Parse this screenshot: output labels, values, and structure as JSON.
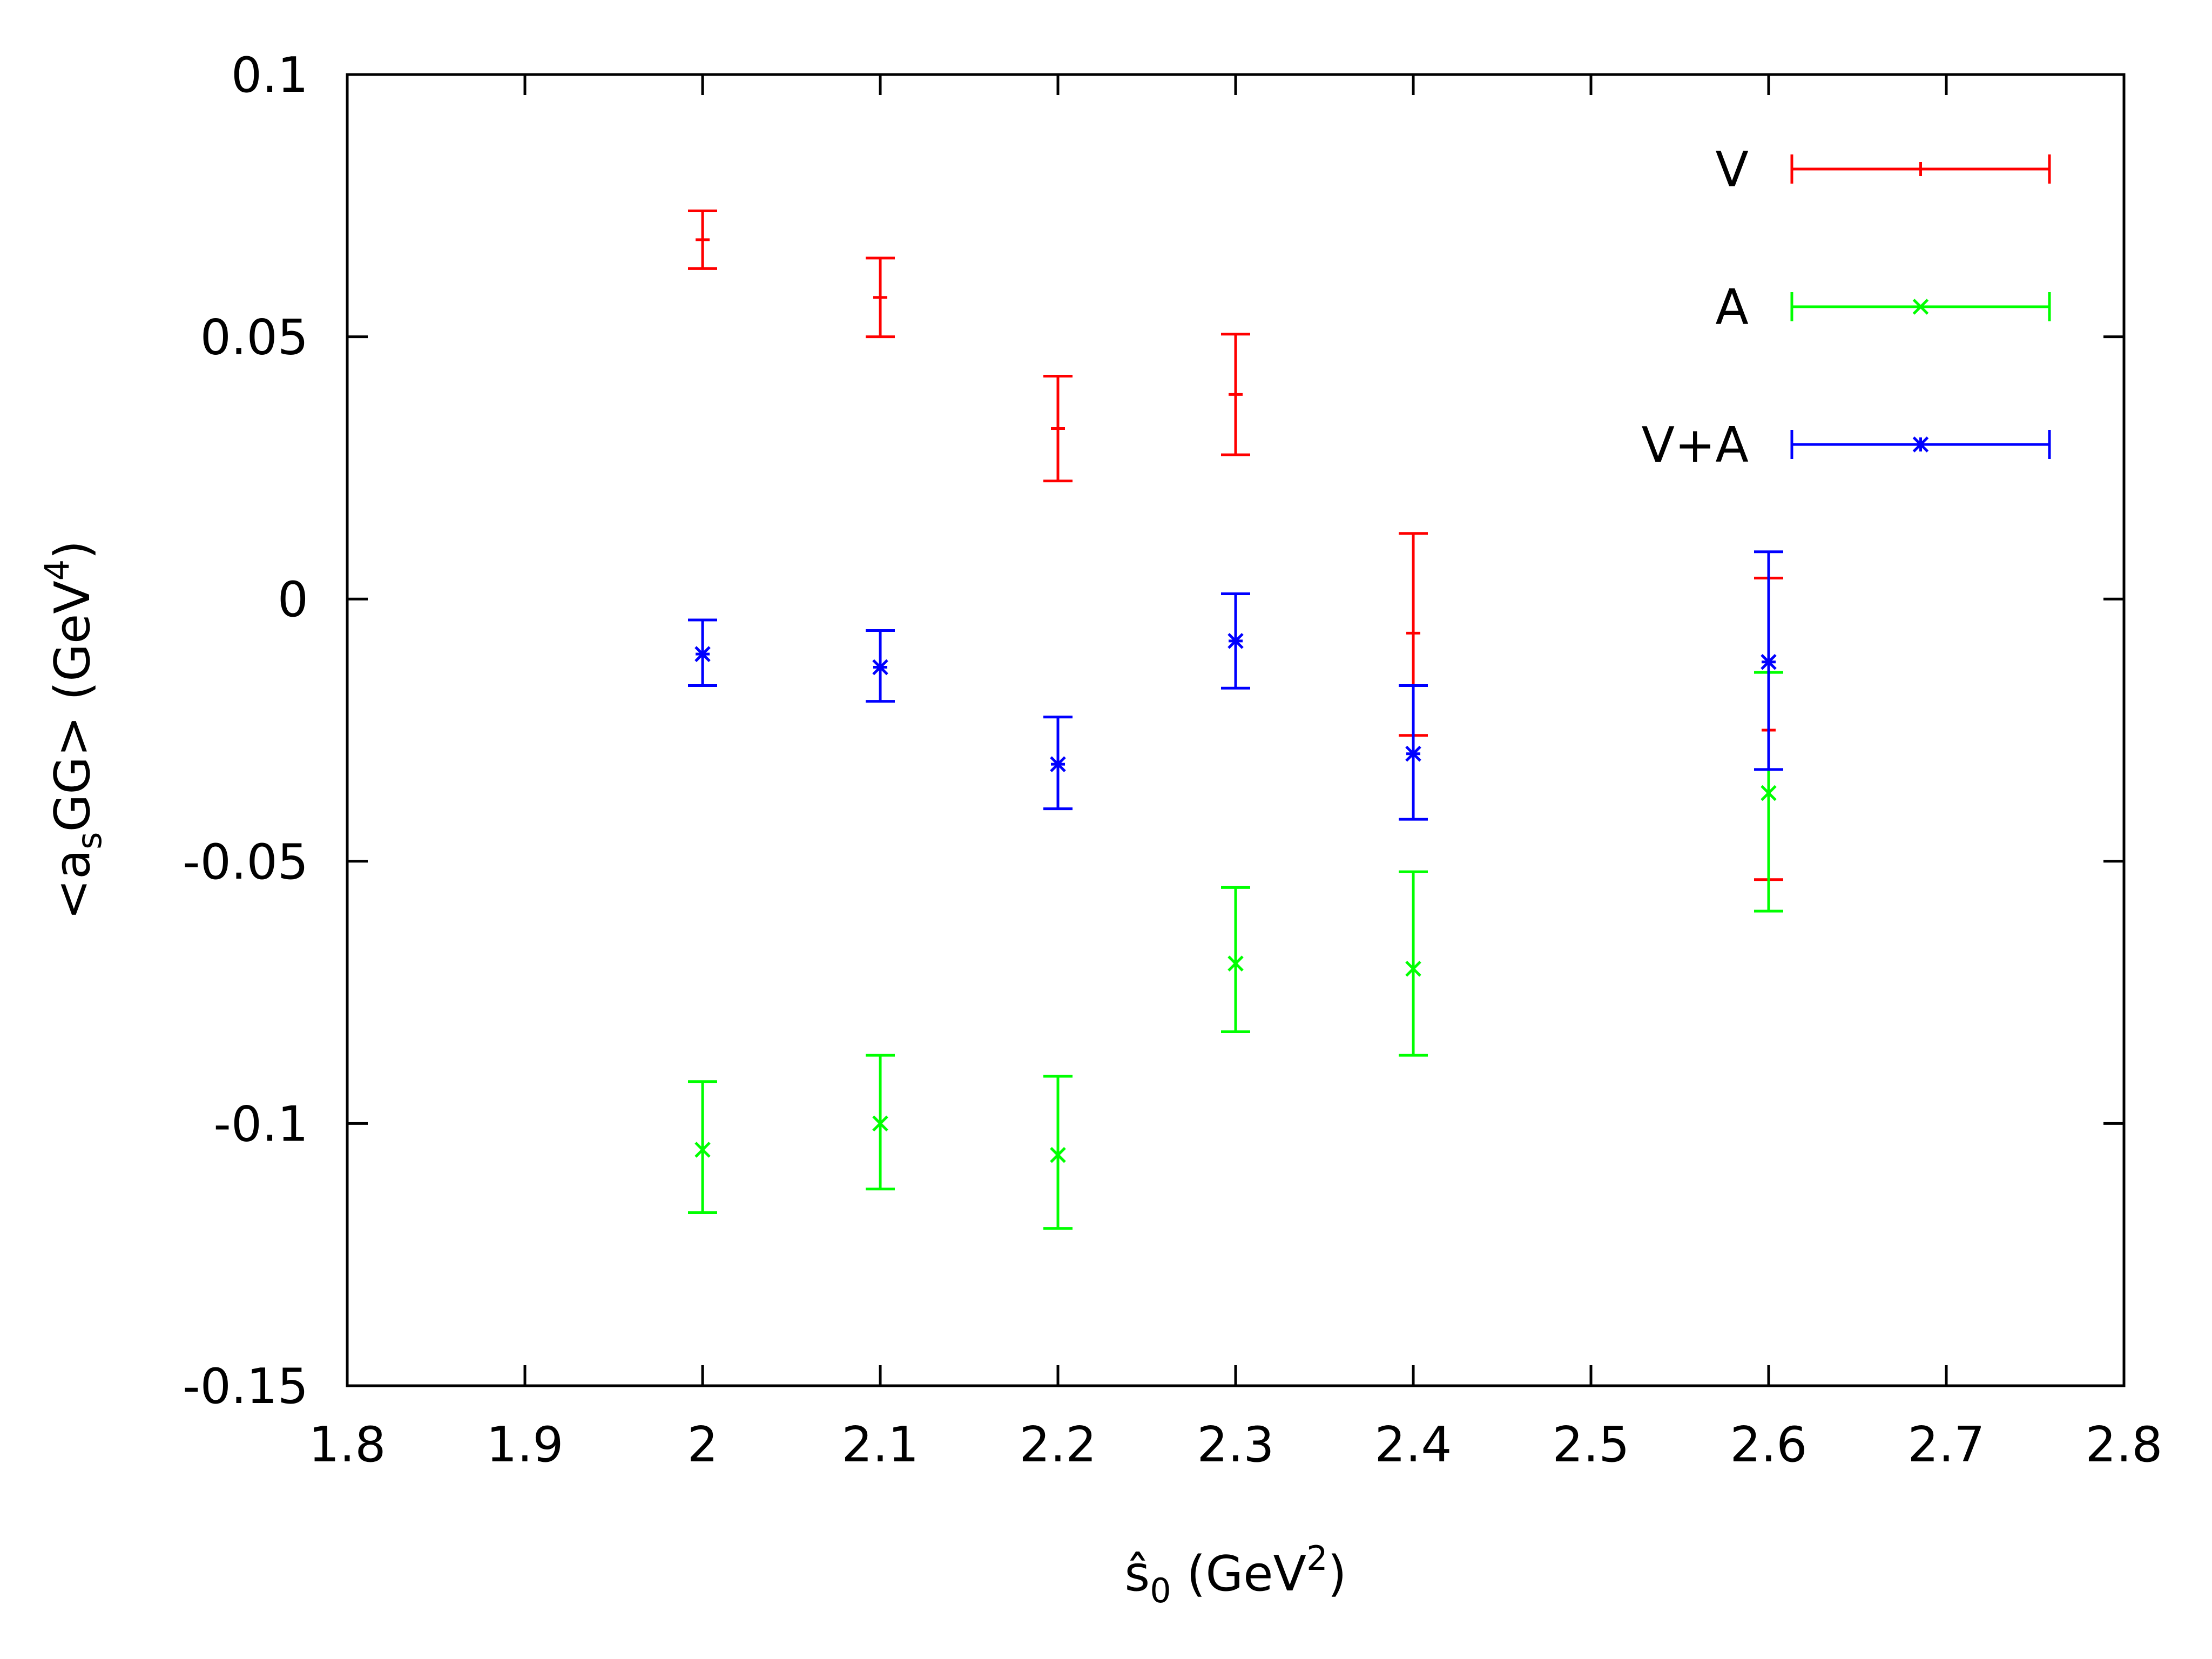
{
  "chart_data": {
    "type": "scatter",
    "subtype": "errorbar",
    "xlabel": {
      "base": "ŝ",
      "sub": "0",
      "text": " (GeV",
      "sup": "2",
      "close": ")"
    },
    "ylabel": {
      "pre": "<a",
      "sub": "s",
      "mid": "GG> (GeV",
      "sup": "4",
      "close": ")"
    },
    "xlim": [
      1.8,
      2.8
    ],
    "ylim": [
      -0.15,
      0.1
    ],
    "xticks": [
      1.8,
      1.9,
      2.0,
      2.1,
      2.2,
      2.3,
      2.4,
      2.5,
      2.6,
      2.7,
      2.8
    ],
    "xtick_labels": [
      "1.8",
      "1.9",
      "2",
      "2.1",
      "2.2",
      "2.3",
      "2.4",
      "2.5",
      "2.6",
      "2.7",
      "2.8"
    ],
    "yticks": [
      -0.15,
      -0.1,
      -0.05,
      0,
      0.05,
      0.1
    ],
    "ytick_labels": [
      "-0.15",
      "-0.1",
      "-0.05",
      "0",
      "0.05",
      "0.1"
    ],
    "grid": false,
    "legend_position": "top-right",
    "series": [
      {
        "name": "V",
        "color": "#ff0000",
        "marker": "plus",
        "x": [
          2.0,
          2.1,
          2.2,
          2.3,
          2.4,
          2.6
        ],
        "y": [
          0.0685,
          0.0575,
          0.0325,
          0.039,
          -0.0065,
          -0.025
        ],
        "low": [
          0.063,
          0.05,
          0.0225,
          0.0275,
          -0.026,
          -0.0535
        ],
        "high": [
          0.074,
          0.065,
          0.0425,
          0.0505,
          0.0125,
          0.004
        ]
      },
      {
        "name": "A",
        "color": "#00ff00",
        "marker": "cross",
        "x": [
          2.0,
          2.1,
          2.2,
          2.3,
          2.4,
          2.6
        ],
        "y": [
          -0.105,
          -0.1,
          -0.106,
          -0.0695,
          -0.0705,
          -0.037
        ],
        "low": [
          -0.117,
          -0.1125,
          -0.12,
          -0.0825,
          -0.087,
          -0.0595
        ],
        "high": [
          -0.092,
          -0.087,
          -0.091,
          -0.055,
          -0.052,
          -0.014
        ]
      },
      {
        "name": "V+A",
        "color": "#0000ff",
        "marker": "star",
        "x": [
          2.0,
          2.1,
          2.2,
          2.3,
          2.4,
          2.6
        ],
        "y": [
          -0.0105,
          -0.013,
          -0.0315,
          -0.008,
          -0.0295,
          -0.012
        ],
        "low": [
          -0.0165,
          -0.0195,
          -0.04,
          -0.017,
          -0.042,
          -0.0325
        ],
        "high": [
          -0.004,
          -0.006,
          -0.0225,
          0.001,
          -0.0165,
          0.009
        ]
      }
    ]
  }
}
